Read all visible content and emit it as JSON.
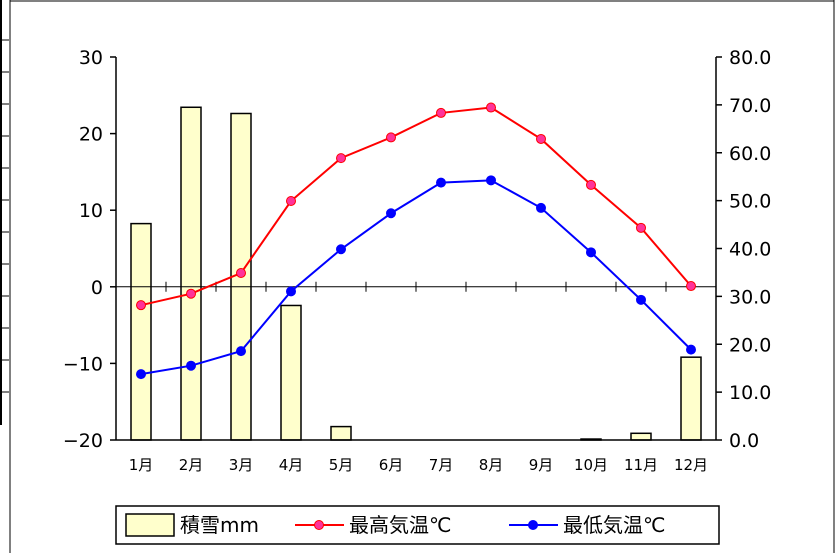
{
  "chart_data": {
    "type": "bar+line",
    "categories": [
      "1月",
      "2月",
      "3月",
      "4月",
      "5月",
      "6月",
      "7月",
      "8月",
      "9月",
      "10月",
      "11月",
      "12月"
    ],
    "series": [
      {
        "name": "積雪mm",
        "type": "bar",
        "axis": "right",
        "color": "#ffffcc",
        "values": [
          45.2,
          69.5,
          68.2,
          28.1,
          2.8,
          0,
          0,
          0,
          0,
          0.2,
          1.4,
          17.3
        ]
      },
      {
        "name": "最高気温℃",
        "type": "line",
        "axis": "left",
        "color": "#ff0000",
        "values": [
          -2.4,
          -0.9,
          1.8,
          11.2,
          16.8,
          19.5,
          22.7,
          23.4,
          19.3,
          13.3,
          7.7,
          0.1
        ]
      },
      {
        "name": "最低気温℃",
        "type": "line",
        "axis": "left",
        "color": "#0000ff",
        "values": [
          -11.4,
          -10.3,
          -8.4,
          -0.6,
          4.9,
          9.6,
          13.6,
          13.9,
          10.3,
          4.5,
          -1.7,
          -8.2
        ]
      }
    ],
    "y_left": {
      "min": -20,
      "max": 30,
      "ticks": [
        "30",
        "20",
        "10",
        "0",
        "−10",
        "−20"
      ],
      "tick_values": [
        30,
        20,
        10,
        0,
        -10,
        -20
      ]
    },
    "y_right": {
      "min": 0,
      "max": 80,
      "ticks": [
        "80.0",
        "70.0",
        "60.0",
        "50.0",
        "40.0",
        "30.0",
        "20.0",
        "10.0",
        "0.0"
      ],
      "tick_values": [
        80,
        70,
        60,
        50,
        40,
        30,
        20,
        10,
        0
      ]
    },
    "grid": false,
    "legend_position": "bottom"
  }
}
